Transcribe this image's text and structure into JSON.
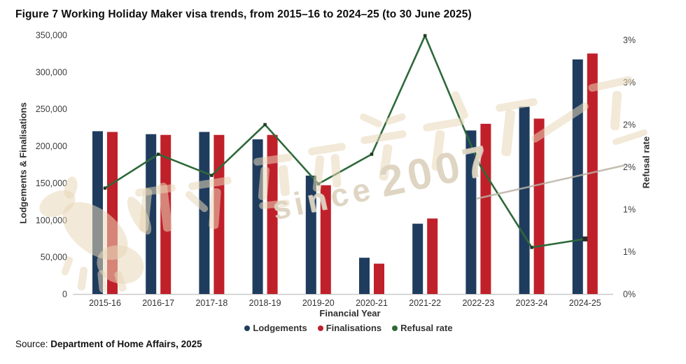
{
  "figure": {
    "title": "Figure 7 Working Holiday Maker visa trends, from 2015–16 to 2024–25 (to 30 June 2025)",
    "source_prefix": "Source:",
    "source_text": "Department of Home Affairs, 2025"
  },
  "watermark": {
    "cjk_text": "新石器留学移民",
    "word": "since",
    "year": "2007"
  },
  "colors": {
    "lodgements": "#1f3c5e",
    "finalisations": "#c0202a",
    "refusal_line": "#2e6939",
    "marker": "#1d3d24",
    "end_marker": "#2b2b2b",
    "baseline": "#c9c9c9",
    "tick_text": "#3d3d3d",
    "watermark_beige": "rgba(231,215,184,0.55)",
    "watermark_rule": "rgba(186,178,163,0.85)"
  },
  "chart_data": {
    "type": "combo-bar-line",
    "title": "Figure 7 Working Holiday Maker visa trends, from 2015–16 to 2024–25 (to 30 June 2025)",
    "categories": [
      "2015-16",
      "2016-17",
      "2017-18",
      "2018-19",
      "2019-20",
      "2020-21",
      "2021-22",
      "2022-23",
      "2023-24",
      "2024-25"
    ],
    "series": [
      {
        "name": "Lodgements",
        "type": "bar",
        "axis": "left",
        "color": "#1f3c5e",
        "values": [
          220000,
          216000,
          219000,
          209000,
          160000,
          49000,
          95000,
          221000,
          253000,
          317000
        ]
      },
      {
        "name": "Finalisations",
        "type": "bar",
        "axis": "left",
        "color": "#c0202a",
        "values": [
          219000,
          215000,
          215000,
          215000,
          147000,
          41000,
          102000,
          230000,
          237000,
          325000
        ]
      },
      {
        "name": "Refusal rate",
        "type": "line",
        "axis": "right",
        "color": "#2e6939",
        "unit": "%",
        "values": [
          1.25,
          1.65,
          1.4,
          2.0,
          1.3,
          1.65,
          3.05,
          1.55,
          0.55,
          0.65
        ]
      }
    ],
    "xlabel": "Financial Year",
    "ylabel_left": "Lodgements & Finalisations",
    "ylabel_right": "Refusal rate",
    "ylim_left": [
      0,
      350000
    ],
    "ylim_right": [
      0,
      3
    ],
    "left_ticks": [
      "0",
      "50,000",
      "100,000",
      "150,000",
      "200,000",
      "250,000",
      "300,000",
      "350,000"
    ],
    "right_ticks": [
      "0%",
      "1%",
      "1%",
      "2%",
      "2%",
      "3%",
      "3%"
    ],
    "grid": false,
    "legend_position": "bottom"
  }
}
